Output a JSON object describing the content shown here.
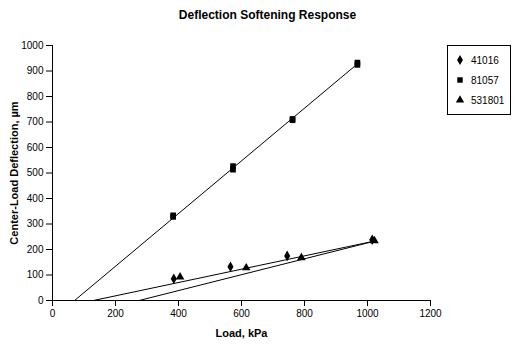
{
  "chart_data": {
    "type": "scatter",
    "title": "Deflection Softening Response",
    "x_label": "Load, kPa",
    "y_label": "Center-Load Deflection, µm",
    "xlim": [
      0,
      1200
    ],
    "xticks": [
      0,
      200,
      400,
      600,
      800,
      1000,
      1200
    ],
    "ylim": [
      0,
      1000
    ],
    "yticks": [
      0,
      100,
      200,
      300,
      400,
      500,
      600,
      700,
      800,
      900,
      1000
    ],
    "grid": false,
    "legend": "right",
    "series": [
      {
        "name": "41016",
        "color": "#000000",
        "marker": "diamond",
        "x": [
          385,
          565,
          745,
          1015
        ],
        "values": [
          85,
          132,
          175,
          238
        ],
        "fit": {
          "x": [
            130,
            1018
          ],
          "values": [
            0,
            232
          ]
        }
      },
      {
        "name": "81057",
        "color": "#000000",
        "marker": "square",
        "x": [
          383,
          383,
          573,
          573,
          762,
          762,
          968,
          968
        ],
        "values": [
          328,
          334,
          513,
          527,
          707,
          712,
          924,
          933
        ],
        "fit": {
          "x": [
            70,
            975
          ],
          "values": [
            0,
            935
          ]
        }
      },
      {
        "name": "531801",
        "color": "#000000",
        "marker": "triangle",
        "x": [
          405,
          615,
          790,
          1022
        ],
        "values": [
          92,
          128,
          168,
          234
        ],
        "fit": {
          "x": [
            275,
            1020
          ],
          "values": [
            0,
            232
          ]
        }
      }
    ]
  }
}
